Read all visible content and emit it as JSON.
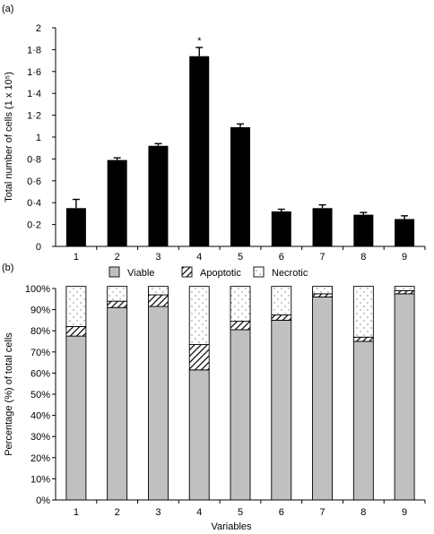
{
  "chart_data": [
    {
      "panel_label": "(a)",
      "type": "bar",
      "categories": [
        "1",
        "2",
        "3",
        "4",
        "5",
        "6",
        "7",
        "8",
        "9"
      ],
      "values": [
        0.35,
        0.79,
        0.92,
        1.74,
        1.09,
        0.32,
        0.35,
        0.29,
        0.25
      ],
      "errors": [
        0.08,
        0.02,
        0.02,
        0.08,
        0.03,
        0.02,
        0.03,
        0.02,
        0.03
      ],
      "annotations": [
        {
          "category": "4",
          "text": "*"
        }
      ],
      "ylabel": "Total number of cells (1 x 10⁵)",
      "ylim": [
        0,
        2
      ],
      "yticks": [
        "0",
        "0·2",
        "0·4",
        "0·6",
        "0·8",
        "1",
        "1·2",
        "1·4",
        "1·6",
        "1·8",
        "2"
      ],
      "bar_color": "#000000",
      "grid": false
    },
    {
      "panel_label": "(b)",
      "type": "bar",
      "stacked": true,
      "categories": [
        "1",
        "2",
        "3",
        "4",
        "5",
        "6",
        "7",
        "8",
        "9"
      ],
      "series": [
        {
          "name": "Viable",
          "values": [
            77.5,
            91,
            91.5,
            61.5,
            80.5,
            85,
            96,
            75,
            97.5
          ],
          "fill": "#c0c0c0"
        },
        {
          "name": "Apoptotic",
          "values": [
            4.5,
            3,
            5.5,
            12,
            4,
            2.5,
            1.5,
            2,
            1.5
          ],
          "fill": "hatch"
        },
        {
          "name": "Necrotic",
          "values": [
            19,
            7,
            4,
            27.5,
            16.5,
            13.5,
            3.5,
            24,
            2
          ],
          "fill": "dots"
        }
      ],
      "ylabel": "Percentage (%) of total cells",
      "xlabel": "Variables",
      "ylim": [
        0,
        100
      ],
      "yticks": [
        "0%",
        "10%",
        "20%",
        "30%",
        "40%",
        "50%",
        "60%",
        "70%",
        "80%",
        "90%",
        "100%"
      ],
      "legend_position": "top",
      "grid": false
    }
  ]
}
